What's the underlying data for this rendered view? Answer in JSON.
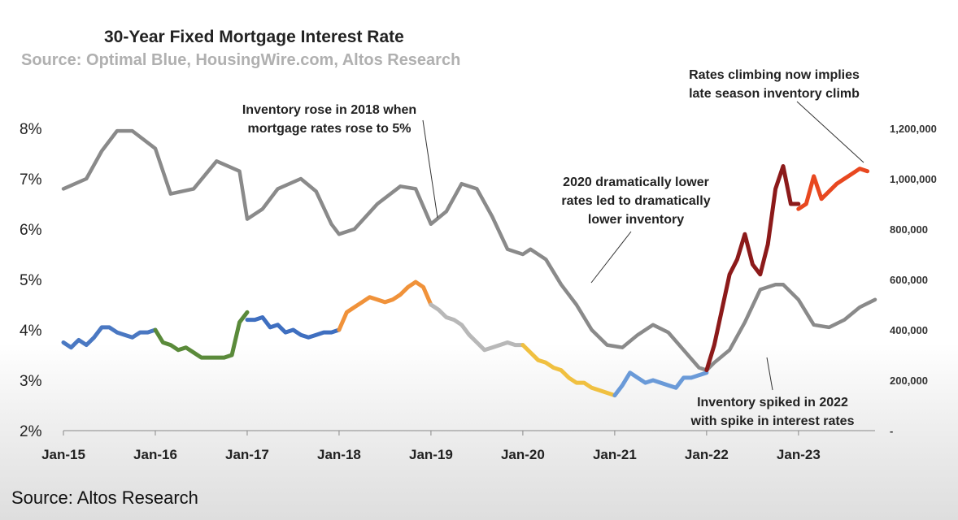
{
  "chart_data": {
    "type": "line",
    "title": "30-Year Fixed Mortgage Interest Rate",
    "subtitle": "Source: Optimal Blue, HousingWire.com, Altos Research",
    "x_ticks": [
      "Jan-15",
      "Jan-16",
      "Jan-17",
      "Jan-18",
      "Jan-19",
      "Jan-20",
      "Jan-21",
      "Jan-22",
      "Jan-23"
    ],
    "y_left_ticks": [
      "8%",
      "7%",
      "6%",
      "5%",
      "4%",
      "3%",
      "2%"
    ],
    "y_right_ticks": [
      "1,200,000",
      "1,000,000",
      "800,000",
      "600,000",
      "400,000",
      "200,000",
      "-"
    ],
    "ylim_left": [
      2,
      8
    ],
    "ylim_right": [
      0,
      1200000
    ],
    "inventory_series": {
      "color": "#8a8a8a",
      "x": [
        "2015-01",
        "2015-04",
        "2015-06",
        "2015-08",
        "2015-10",
        "2016-01",
        "2016-03",
        "2016-06",
        "2016-09",
        "2016-12",
        "2017-01",
        "2017-03",
        "2017-05",
        "2017-08",
        "2017-10",
        "2017-12",
        "2018-01",
        "2018-03",
        "2018-06",
        "2018-09",
        "2018-11",
        "2019-01",
        "2019-03",
        "2019-05",
        "2019-07",
        "2019-09",
        "2019-11",
        "2020-01",
        "2020-02",
        "2020-04",
        "2020-06",
        "2020-08",
        "2020-10",
        "2020-12",
        "2021-02",
        "2021-04",
        "2021-06",
        "2021-08",
        "2021-10",
        "2021-12",
        "2022-01",
        "2022-02",
        "2022-04",
        "2022-06",
        "2022-08",
        "2022-10",
        "2022-11",
        "2023-01",
        "2023-03",
        "2023-05",
        "2023-07",
        "2023-09",
        "2023-11"
      ],
      "values": [
        960000,
        1000000,
        1110000,
        1190000,
        1190000,
        1120000,
        940000,
        960000,
        1070000,
        1030000,
        840000,
        880000,
        960000,
        1000000,
        950000,
        820000,
        780000,
        800000,
        900000,
        970000,
        960000,
        820000,
        870000,
        980000,
        960000,
        850000,
        720000,
        700000,
        720000,
        680000,
        580000,
        500000,
        400000,
        340000,
        330000,
        380000,
        420000,
        390000,
        320000,
        250000,
        240000,
        270000,
        320000,
        430000,
        560000,
        580000,
        580000,
        520000,
        420000,
        410000,
        440000,
        490000,
        520000
      ]
    },
    "rate_series": [
      {
        "color": "#4a78c2",
        "x": [
          "2015-01",
          "2015-02",
          "2015-03",
          "2015-04",
          "2015-05",
          "2015-06",
          "2015-07",
          "2015-08",
          "2015-09",
          "2015-10",
          "2015-11",
          "2015-12",
          "2016-01"
        ],
        "values": [
          3.75,
          3.65,
          3.8,
          3.7,
          3.85,
          4.05,
          4.05,
          3.95,
          3.9,
          3.85,
          3.95,
          3.95,
          4.0
        ]
      },
      {
        "color": "#5a8a3a",
        "x": [
          "2016-01",
          "2016-02",
          "2016-03",
          "2016-04",
          "2016-05",
          "2016-06",
          "2016-07",
          "2016-08",
          "2016-09",
          "2016-10",
          "2016-11",
          "2016-12",
          "2017-01"
        ],
        "values": [
          4.0,
          3.75,
          3.7,
          3.6,
          3.65,
          3.55,
          3.45,
          3.45,
          3.45,
          3.45,
          3.5,
          4.15,
          4.35
        ]
      },
      {
        "color": "#3f6fc0",
        "x": [
          "2017-01",
          "2017-02",
          "2017-03",
          "2017-04",
          "2017-05",
          "2017-06",
          "2017-07",
          "2017-08",
          "2017-09",
          "2017-10",
          "2017-11",
          "2017-12",
          "2018-01"
        ],
        "values": [
          4.2,
          4.2,
          4.25,
          4.05,
          4.1,
          3.95,
          4.0,
          3.9,
          3.85,
          3.9,
          3.95,
          3.95,
          4.0
        ]
      },
      {
        "color": "#f0923a",
        "x": [
          "2018-01",
          "2018-02",
          "2018-03",
          "2018-04",
          "2018-05",
          "2018-06",
          "2018-07",
          "2018-08",
          "2018-09",
          "2018-10",
          "2018-11",
          "2018-12",
          "2019-01"
        ],
        "values": [
          4.0,
          4.35,
          4.45,
          4.55,
          4.65,
          4.6,
          4.55,
          4.6,
          4.7,
          4.85,
          4.95,
          4.85,
          4.5
        ]
      },
      {
        "color": "#b8b8b8",
        "x": [
          "2019-01",
          "2019-02",
          "2019-03",
          "2019-04",
          "2019-05",
          "2019-06",
          "2019-07",
          "2019-08",
          "2019-09",
          "2019-10",
          "2019-11",
          "2019-12",
          "2020-01"
        ],
        "values": [
          4.5,
          4.4,
          4.25,
          4.2,
          4.1,
          3.9,
          3.75,
          3.6,
          3.65,
          3.7,
          3.75,
          3.7,
          3.7
        ]
      },
      {
        "color": "#f0c040",
        "x": [
          "2020-01",
          "2020-02",
          "2020-03",
          "2020-04",
          "2020-05",
          "2020-06",
          "2020-07",
          "2020-08",
          "2020-09",
          "2020-10",
          "2020-11",
          "2020-12",
          "2021-01"
        ],
        "values": [
          3.7,
          3.55,
          3.4,
          3.35,
          3.25,
          3.2,
          3.05,
          2.95,
          2.95,
          2.85,
          2.8,
          2.75,
          2.7
        ]
      },
      {
        "color": "#6a9ad8",
        "x": [
          "2021-01",
          "2021-02",
          "2021-03",
          "2021-04",
          "2021-05",
          "2021-06",
          "2021-07",
          "2021-08",
          "2021-09",
          "2021-10",
          "2021-11",
          "2021-12",
          "2022-01"
        ],
        "values": [
          2.7,
          2.9,
          3.15,
          3.05,
          2.95,
          3.0,
          2.95,
          2.9,
          2.85,
          3.05,
          3.05,
          3.1,
          3.15
        ]
      },
      {
        "color": "#8c1a1a",
        "x": [
          "2022-01",
          "2022-02",
          "2022-03",
          "2022-04",
          "2022-05",
          "2022-06",
          "2022-07",
          "2022-08",
          "2022-09",
          "2022-10",
          "2022-11",
          "2022-12",
          "2023-01"
        ],
        "values": [
          3.2,
          3.7,
          4.4,
          5.1,
          5.4,
          5.9,
          5.3,
          5.1,
          5.7,
          6.8,
          7.25,
          6.5,
          6.5
        ]
      },
      {
        "color": "#e84820",
        "x": [
          "2023-01",
          "2023-02",
          "2023-03",
          "2023-04",
          "2023-05",
          "2023-06",
          "2023-07",
          "2023-08",
          "2023-09",
          "2023-10"
        ],
        "values": [
          6.4,
          6.5,
          7.05,
          6.6,
          6.75,
          6.9,
          7.0,
          7.1,
          7.2,
          7.15
        ]
      }
    ],
    "annotations": [
      {
        "lines": [
          "Inventory rose in 2018 when",
          "mortgage rates rose to 5%"
        ],
        "point": "2018-12"
      },
      {
        "lines": [
          "Rates climbing now implies",
          "late season inventory climb"
        ],
        "point": "2023-09"
      },
      {
        "lines": [
          "2020 dramatically lower",
          "rates led to dramatically",
          "lower inventory"
        ],
        "point": "2020-07"
      },
      {
        "lines": [
          "Inventory spiked in 2022",
          "with spike in interest rates"
        ],
        "point": "2022-06"
      }
    ]
  },
  "footer": {
    "source": "Source: Altos Research"
  }
}
